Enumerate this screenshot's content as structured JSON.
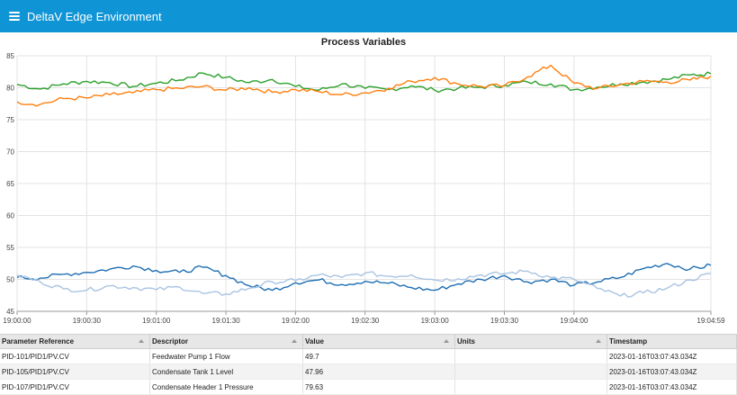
{
  "app": {
    "title": "DeltaV Edge Environment",
    "menu_icon": "hamburger-icon"
  },
  "chart_data": {
    "type": "line",
    "title": "Process Variables",
    "xlabel": "",
    "ylabel": "",
    "ylim": [
      45,
      85
    ],
    "yticks": [
      "85",
      "80",
      "75",
      "70",
      "65",
      "60",
      "55",
      "50",
      "45"
    ],
    "xlim_seconds": [
      0,
      299
    ],
    "xticks": [
      {
        "t": 0,
        "label": "19:00:00"
      },
      {
        "t": 30,
        "label": "19:00:30"
      },
      {
        "t": 60,
        "label": "19:01:00"
      },
      {
        "t": 90,
        "label": "19:01:30"
      },
      {
        "t": 120,
        "label": "19:02:00"
      },
      {
        "t": 150,
        "label": "19:02:30"
      },
      {
        "t": 180,
        "label": "19:03:00"
      },
      {
        "t": 210,
        "label": "19:03:30"
      },
      {
        "t": 240,
        "label": "19:04:00"
      },
      {
        "t": 299,
        "label": "19:04:59"
      }
    ],
    "grid": true,
    "x": [
      0,
      10,
      20,
      30,
      40,
      50,
      60,
      70,
      80,
      90,
      100,
      110,
      120,
      130,
      140,
      150,
      160,
      170,
      180,
      190,
      200,
      210,
      220,
      230,
      240,
      250,
      260,
      270,
      280,
      290,
      299
    ],
    "series": [
      {
        "color": "#2ca02c",
        "values": [
          80.5,
          79.8,
          80.6,
          81.0,
          80.8,
          80.2,
          80.7,
          81.2,
          82.3,
          81.6,
          80.8,
          81.3,
          80.2,
          79.6,
          80.6,
          79.9,
          79.7,
          80.3,
          79.6,
          79.9,
          80.1,
          80.4,
          80.9,
          80.6,
          79.7,
          80.1,
          80.6,
          80.9,
          81.3,
          82.0,
          82.2
        ]
      },
      {
        "color": "#ff7f0e",
        "values": [
          77.8,
          77.4,
          78.3,
          78.4,
          78.9,
          79.2,
          79.7,
          79.9,
          80.2,
          79.6,
          80.0,
          79.3,
          79.7,
          79.4,
          78.9,
          79.2,
          79.9,
          81.0,
          81.6,
          80.6,
          80.2,
          80.3,
          81.7,
          83.5,
          80.7,
          79.9,
          80.5,
          81.0,
          80.9,
          81.2,
          81.8
        ]
      },
      {
        "color": "#1f6fb4",
        "values": [
          50.3,
          50.2,
          50.8,
          51.1,
          51.6,
          52.1,
          51.4,
          51.1,
          51.9,
          50.6,
          49.0,
          48.3,
          49.5,
          49.9,
          49.2,
          49.7,
          49.4,
          48.7,
          48.3,
          49.3,
          50.0,
          50.6,
          49.6,
          50.0,
          49.1,
          49.6,
          50.3,
          51.7,
          52.5,
          51.6,
          52.2
        ]
      },
      {
        "color": "#a9c4e2",
        "values": [
          50.7,
          49.6,
          48.5,
          48.3,
          49.0,
          48.7,
          48.4,
          48.8,
          47.8,
          47.7,
          48.6,
          49.6,
          49.8,
          50.7,
          50.3,
          51.0,
          50.5,
          50.7,
          49.9,
          50.1,
          50.7,
          50.9,
          51.3,
          50.3,
          50.0,
          48.6,
          47.4,
          47.9,
          48.6,
          49.9,
          50.9
        ]
      }
    ]
  },
  "table": {
    "columns": [
      "Parameter Reference",
      "Descriptor",
      "Value",
      "Units",
      "Timestamp"
    ],
    "rows": [
      {
        "ref": "PID-101/PID1/PV.CV",
        "desc": "Feedwater Pump 1 Flow",
        "value": "49.7",
        "units": "",
        "ts": "2023-01-16T03:07:43.034Z"
      },
      {
        "ref": "PID-105/PID1/PV.CV",
        "desc": "Condensate Tank 1 Level",
        "value": "47.96",
        "units": "",
        "ts": "2023-01-16T03:07:43.034Z"
      },
      {
        "ref": "PID-107/PID1/PV.CV",
        "desc": "Condensate Header 1 Pressure",
        "value": "79.63",
        "units": "",
        "ts": "2023-01-16T03:07:43.034Z"
      }
    ]
  }
}
